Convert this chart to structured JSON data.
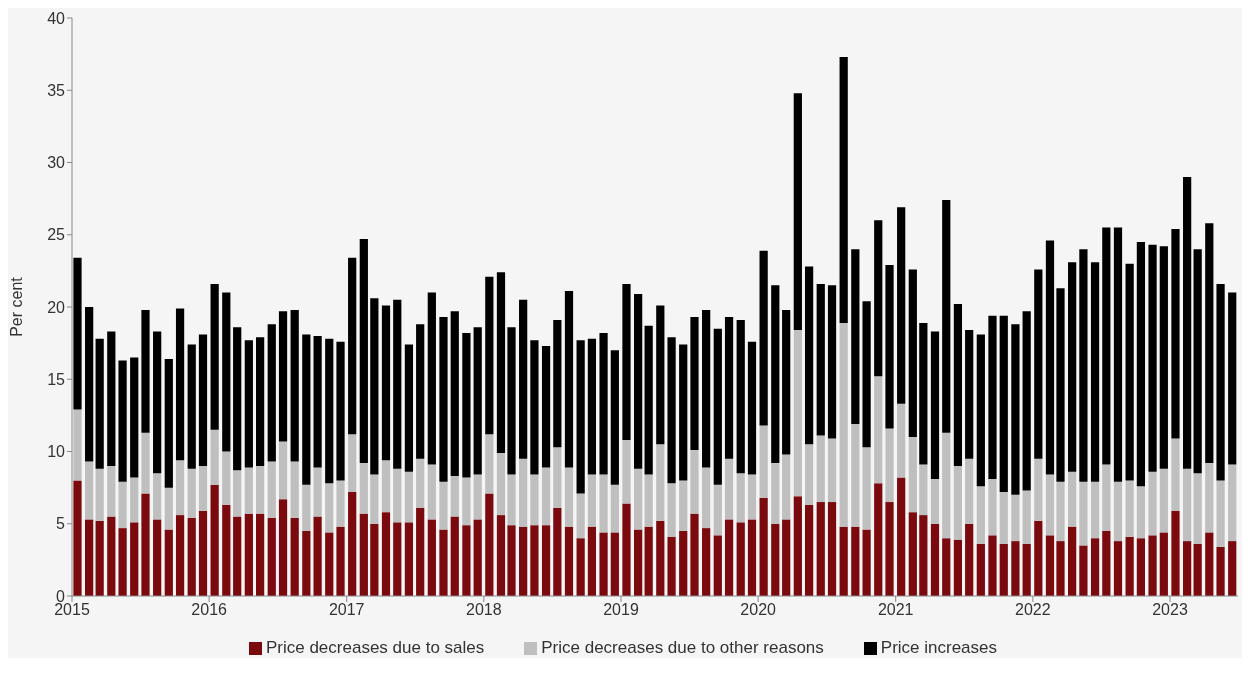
{
  "chart_data": {
    "type": "bar",
    "stacked": true,
    "ylabel": "Per cent",
    "x": [
      "2015-01",
      "2015-02",
      "2015-03",
      "2015-04",
      "2015-05",
      "2015-06",
      "2015-07",
      "2015-08",
      "2015-09",
      "2015-10",
      "2015-11",
      "2015-12",
      "2016-01",
      "2016-02",
      "2016-03",
      "2016-04",
      "2016-05",
      "2016-06",
      "2016-07",
      "2016-08",
      "2016-09",
      "2016-10",
      "2016-11",
      "2016-12",
      "2017-01",
      "2017-02",
      "2017-03",
      "2017-04",
      "2017-05",
      "2017-06",
      "2017-07",
      "2017-08",
      "2017-09",
      "2017-10",
      "2017-11",
      "2017-12",
      "2018-01",
      "2018-02",
      "2018-03",
      "2018-04",
      "2018-05",
      "2018-06",
      "2018-07",
      "2018-08",
      "2018-09",
      "2018-10",
      "2018-11",
      "2018-12",
      "2019-01",
      "2019-02",
      "2019-03",
      "2019-04",
      "2019-05",
      "2019-06",
      "2019-07",
      "2019-08",
      "2019-09",
      "2019-10",
      "2019-11",
      "2019-12",
      "2020-01",
      "2020-02",
      "2020-03",
      "2020-04",
      "2020-05",
      "2020-06",
      "2020-07",
      "2020-08",
      "2020-09",
      "2020-10",
      "2020-11",
      "2020-12",
      "2021-01",
      "2021-02",
      "2021-03",
      "2021-04",
      "2021-05",
      "2021-06",
      "2021-07",
      "2021-08",
      "2021-09",
      "2021-10",
      "2021-11",
      "2021-12",
      "2022-01",
      "2022-02",
      "2022-03",
      "2022-04",
      "2022-05",
      "2022-06",
      "2022-07",
      "2022-08",
      "2022-09",
      "2022-10",
      "2022-11",
      "2022-12",
      "2023-01",
      "2023-02",
      "2023-03",
      "2023-04",
      "2023-05",
      "2023-06"
    ],
    "series": [
      {
        "name": "Price decreases due to sales",
        "color": "#7b0a0e",
        "values": [
          8.0,
          5.3,
          5.2,
          5.5,
          4.7,
          5.1,
          7.1,
          5.3,
          4.6,
          5.6,
          5.4,
          5.9,
          7.7,
          6.3,
          5.5,
          5.7,
          5.7,
          5.4,
          6.7,
          5.4,
          4.5,
          5.5,
          4.4,
          4.8,
          7.2,
          5.7,
          5.0,
          5.8,
          5.1,
          5.1,
          6.1,
          5.3,
          4.6,
          5.5,
          4.9,
          5.3,
          7.1,
          5.6,
          4.9,
          4.8,
          4.9,
          4.9,
          6.1,
          4.8,
          4.0,
          4.8,
          4.4,
          4.4,
          6.4,
          4.6,
          4.8,
          5.2,
          4.1,
          4.5,
          5.7,
          4.7,
          4.2,
          5.3,
          5.1,
          5.3,
          6.8,
          5.0,
          5.3,
          6.9,
          6.3,
          6.5,
          6.5,
          4.8,
          4.8,
          4.6,
          7.8,
          6.5,
          8.2,
          5.8,
          5.6,
          5.0,
          4.0,
          3.9,
          5.0,
          3.6,
          4.2,
          3.6,
          3.8,
          3.6,
          5.2,
          4.2,
          3.8,
          4.8,
          3.5,
          4.0,
          4.5,
          3.8,
          4.1,
          4.0,
          4.2,
          4.4,
          5.9,
          3.8,
          3.6,
          4.4,
          3.4,
          3.8
        ]
      },
      {
        "name": "Price decreases due to other reasons",
        "color": "#bfbfbf",
        "values": [
          4.9,
          4.0,
          3.6,
          3.5,
          3.2,
          3.1,
          4.2,
          3.2,
          2.9,
          3.8,
          3.4,
          3.1,
          3.8,
          3.7,
          3.2,
          3.2,
          3.3,
          3.9,
          4.0,
          3.9,
          3.2,
          3.4,
          3.4,
          3.2,
          4.0,
          3.5,
          3.4,
          3.6,
          3.7,
          3.5,
          3.4,
          3.8,
          3.3,
          2.8,
          3.3,
          3.1,
          4.1,
          4.3,
          3.5,
          4.7,
          3.5,
          4.0,
          4.2,
          4.1,
          3.1,
          3.6,
          4.0,
          3.3,
          4.4,
          4.2,
          3.6,
          5.3,
          3.7,
          3.5,
          4.4,
          4.2,
          3.5,
          4.2,
          3.4,
          3.1,
          5.0,
          4.2,
          4.5,
          11.5,
          4.2,
          4.6,
          4.4,
          14.1,
          7.1,
          5.7,
          7.4,
          5.1,
          5.1,
          5.2,
          3.5,
          3.1,
          7.3,
          5.1,
          4.5,
          4.0,
          3.9,
          3.6,
          3.2,
          3.7,
          4.3,
          4.2,
          4.1,
          3.8,
          4.4,
          3.9,
          4.6,
          4.1,
          3.9,
          3.6,
          4.4,
          4.4,
          5.0,
          5.0,
          4.9,
          4.8,
          4.6,
          5.3
        ]
      },
      {
        "name": "Price increases",
        "color": "#000000",
        "values": [
          10.5,
          10.7,
          9.0,
          9.3,
          8.4,
          8.3,
          8.5,
          9.8,
          8.9,
          10.5,
          8.6,
          9.1,
          10.1,
          11.0,
          9.9,
          8.8,
          8.9,
          9.5,
          9.0,
          10.5,
          10.4,
          9.1,
          10.0,
          9.6,
          12.2,
          15.5,
          12.2,
          10.7,
          11.7,
          8.8,
          9.3,
          11.9,
          11.4,
          11.4,
          10.0,
          10.2,
          10.9,
          12.5,
          10.2,
          11.0,
          9.3,
          8.4,
          8.8,
          12.2,
          10.6,
          9.4,
          9.8,
          9.3,
          10.8,
          12.1,
          10.3,
          9.6,
          10.1,
          9.4,
          9.2,
          10.9,
          10.8,
          9.8,
          10.6,
          9.2,
          12.1,
          12.3,
          10.0,
          16.4,
          12.3,
          10.5,
          10.6,
          18.4,
          12.1,
          10.1,
          10.8,
          11.3,
          13.6,
          11.6,
          9.8,
          10.2,
          16.1,
          11.2,
          8.9,
          10.5,
          11.3,
          12.2,
          11.8,
          12.4,
          13.1,
          16.2,
          13.4,
          14.5,
          16.1,
          15.2,
          16.4,
          17.6,
          15.0,
          16.9,
          15.7,
          15.4,
          14.5,
          20.2,
          15.5,
          16.6,
          13.6,
          11.9
        ]
      }
    ],
    "xlim": [
      "2015-01-01",
      "2023-07-01"
    ],
    "xticks": [
      "2015",
      "2016",
      "2017",
      "2018",
      "2019",
      "2020",
      "2021",
      "2022",
      "2023"
    ],
    "ylim": [
      0,
      40
    ],
    "yticks": [
      0,
      5,
      10,
      15,
      20,
      25,
      30,
      35,
      40
    ],
    "legend": "bottom"
  }
}
